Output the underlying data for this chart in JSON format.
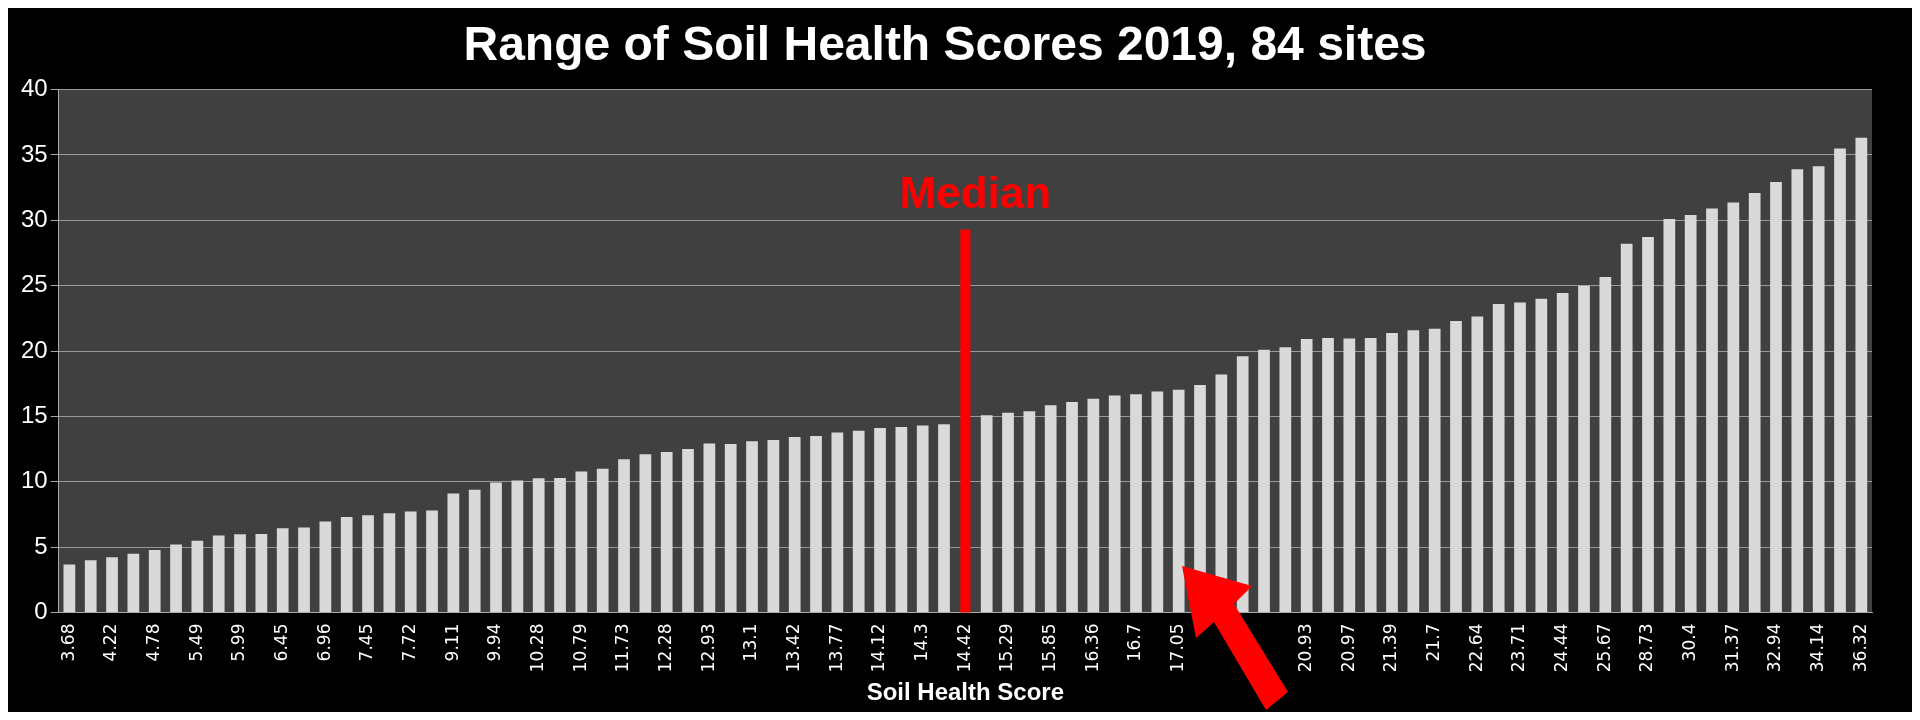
{
  "chart_data": {
    "type": "bar",
    "title": "Range of Soil Health Scores 2019, 84 sites",
    "xlabel": "Soil Health Score",
    "categories": [
      "3.68",
      null,
      "4.22",
      null,
      "4.78",
      null,
      "5.49",
      null,
      "5.99",
      null,
      "6.45",
      null,
      "6.96",
      null,
      "7.45",
      null,
      "7.72",
      null,
      "9.11",
      null,
      "9.94",
      null,
      "10.28",
      null,
      "10.79",
      null,
      "11.73",
      null,
      "12.28",
      null,
      "12.93",
      null,
      "13.1",
      null,
      "13.42",
      null,
      "13.77",
      null,
      "14.12",
      null,
      "14.3",
      null,
      "14.42",
      null,
      "15.29",
      null,
      "15.85",
      null,
      "16.36",
      null,
      "16.7",
      null,
      "17.05",
      null,
      null,
      null,
      null,
      null,
      "20.93",
      null,
      "20.97",
      null,
      "21.39",
      null,
      "21.7",
      null,
      "22.64",
      null,
      "23.71",
      null,
      "24.44",
      null,
      "25.67",
      null,
      "28.73",
      null,
      "30.4",
      null,
      "31.37",
      null,
      "32.94",
      null,
      "34.14",
      null,
      "36.32"
    ],
    "values": [
      3.68,
      4.0,
      4.22,
      4.5,
      4.78,
      5.2,
      5.49,
      5.9,
      5.99,
      6.0,
      6.45,
      6.5,
      6.96,
      7.3,
      7.45,
      7.6,
      7.72,
      7.8,
      9.11,
      9.4,
      9.94,
      10.1,
      10.28,
      10.3,
      10.79,
      11.0,
      11.73,
      12.1,
      12.28,
      12.5,
      12.93,
      12.9,
      13.1,
      13.2,
      13.42,
      13.5,
      13.77,
      13.9,
      14.12,
      14.2,
      14.3,
      14.4,
      null,
      15.1,
      15.29,
      15.4,
      15.85,
      16.1,
      16.36,
      16.6,
      16.7,
      16.9,
      17.05,
      17.4,
      18.2,
      19.6,
      20.1,
      20.3,
      20.93,
      21.0,
      20.97,
      21.0,
      21.39,
      21.6,
      21.7,
      22.3,
      22.64,
      23.6,
      23.71,
      24.0,
      24.44,
      25.0,
      25.67,
      28.2,
      28.73,
      30.1,
      30.4,
      30.9,
      31.37,
      32.1,
      32.94,
      33.9,
      34.14,
      35.5,
      36.32
    ],
    "color": "#d9d9d9",
    "ylim": [
      0,
      40
    ],
    "yticks": [
      0,
      5,
      10,
      15,
      20,
      25,
      30,
      35,
      40
    ],
    "grid": "y",
    "legend": false,
    "ref_lines": [
      {
        "axis": "x",
        "value": "14.42",
        "label": "Median",
        "color": "#ff0000"
      }
    ]
  }
}
